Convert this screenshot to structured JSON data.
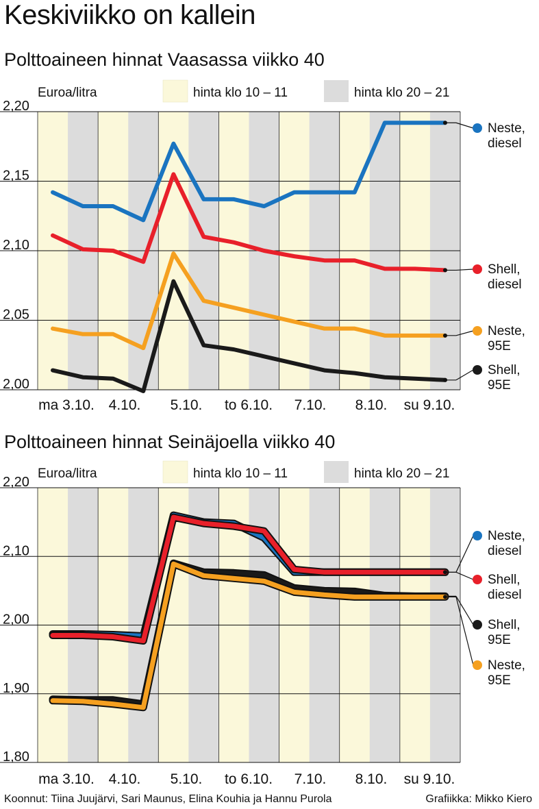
{
  "title": "Keskiviikko on kallein",
  "footer": {
    "credits": "Koonnut: Tiina Juujärvi, Sari Maunus, Elina Kouhia ja Hannu Purola",
    "graphics": "Grafiikka: Mikko Kiero"
  },
  "colors": {
    "day_band": "#fbf8da",
    "night_band": "#dcdcdc",
    "neste_diesel": "#1a74c0",
    "shell_diesel": "#e8202a",
    "neste_95e": "#f5a020",
    "shell_95e": "#1a1a1a"
  },
  "chart_data": [
    {
      "type": "line",
      "title": "Polttoaineen hinnat Vaasassa viikko 40",
      "ylabel": "Euroa/litra",
      "legend": {
        "day": "hinta klo 10 – 11",
        "night": "hinta klo 20 – 21"
      },
      "ylim": [
        2.0,
        2.2
      ],
      "yticks": [
        2.0,
        2.05,
        2.1,
        2.15,
        2.2
      ],
      "ytick_labels": [
        "2,00",
        "2,05",
        "2,10",
        "2,15",
        "2,20"
      ],
      "xtick_labels": [
        "ma 3.10.",
        "4.10.",
        "5.10.",
        "to 6.10.",
        "7.10.",
        "8.10.",
        "su 9.10."
      ],
      "n_points": 14,
      "series": [
        {
          "name": "Neste, diesel",
          "label_lines": [
            "Neste,",
            "diesel"
          ],
          "color_key": "neste_diesel",
          "values": [
            2.142,
            2.132,
            2.132,
            2.122,
            2.177,
            2.137,
            2.137,
            2.132,
            2.142,
            2.142,
            2.142,
            2.192,
            2.192,
            2.192
          ]
        },
        {
          "name": "Shell, diesel",
          "label_lines": [
            "Shell,",
            "diesel"
          ],
          "color_key": "shell_diesel",
          "values": [
            2.111,
            2.101,
            2.1,
            2.092,
            2.155,
            2.11,
            2.106,
            2.1,
            2.096,
            2.093,
            2.093,
            2.087,
            2.087,
            2.086
          ]
        },
        {
          "name": "Neste, 95E",
          "label_lines": [
            "Neste,",
            "95E"
          ],
          "color_key": "neste_95e",
          "values": [
            2.044,
            2.04,
            2.04,
            2.03,
            2.098,
            2.064,
            2.059,
            2.054,
            2.049,
            2.044,
            2.044,
            2.039,
            2.039,
            2.039
          ]
        },
        {
          "name": "Shell, 95E",
          "label_lines": [
            "Shell,",
            "95E"
          ],
          "color_key": "shell_95e",
          "values": [
            2.014,
            2.009,
            2.008,
            1.999,
            2.078,
            2.032,
            2.029,
            2.024,
            2.019,
            2.014,
            2.012,
            2.009,
            2.008,
            2.007
          ]
        }
      ]
    },
    {
      "type": "line",
      "title": "Polttoaineen hinnat Seinäjoella viikko 40",
      "ylabel": "Euroa/litra",
      "legend": {
        "day": "hinta klo 10 – 11",
        "night": "hinta klo 20 – 21"
      },
      "ylim": [
        1.8,
        2.2
      ],
      "yticks": [
        1.8,
        1.9,
        2.0,
        2.1,
        2.2
      ],
      "ytick_labels": [
        "1,80",
        "1,90",
        "2,00",
        "2,10",
        "2,20"
      ],
      "xtick_labels": [
        "ma 3.10.",
        "4.10.",
        "5.10.",
        "to 6.10.",
        "7.10.",
        "8.10.",
        "su 9.10."
      ],
      "n_points": 14,
      "series": [
        {
          "name": "Neste, diesel",
          "label_lines": [
            "Neste,",
            "diesel"
          ],
          "color_key": "neste_diesel",
          "values": [
            1.987,
            1.987,
            1.986,
            1.984,
            2.16,
            2.15,
            2.148,
            2.127,
            2.077,
            2.077,
            2.077,
            2.077,
            2.077,
            2.077
          ]
        },
        {
          "name": "Shell, diesel",
          "label_lines": [
            "Shell,",
            "diesel"
          ],
          "color_key": "shell_diesel",
          "values": [
            1.985,
            1.985,
            1.983,
            1.977,
            2.157,
            2.148,
            2.144,
            2.137,
            2.081,
            2.077,
            2.077,
            2.077,
            2.077,
            2.077
          ]
        },
        {
          "name": "Shell, 95E",
          "label_lines": [
            "Shell,",
            "95E"
          ],
          "color_key": "shell_95e",
          "values": [
            1.892,
            1.891,
            1.891,
            1.885,
            2.09,
            2.077,
            2.076,
            2.073,
            2.054,
            2.05,
            2.049,
            2.043,
            2.042,
            2.042
          ]
        },
        {
          "name": "Neste, 95E",
          "label_lines": [
            "Neste,",
            "95E"
          ],
          "color_key": "neste_95e",
          "values": [
            1.89,
            1.889,
            1.885,
            1.88,
            2.089,
            2.072,
            2.068,
            2.064,
            2.048,
            2.044,
            2.041,
            2.041,
            2.041,
            2.041
          ]
        }
      ]
    }
  ]
}
